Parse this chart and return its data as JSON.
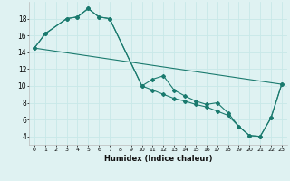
{
  "xlabel": "Humidex (Indice chaleur)",
  "bg_color": "#dff2f2",
  "grid_color": "#c8e8e8",
  "line_color": "#1a7a6e",
  "xlim": [
    -0.5,
    23.5
  ],
  "ylim": [
    3.0,
    20.0
  ],
  "xticks": [
    0,
    1,
    2,
    3,
    4,
    5,
    6,
    7,
    8,
    9,
    10,
    11,
    12,
    13,
    14,
    15,
    16,
    17,
    18,
    19,
    20,
    21,
    22,
    23
  ],
  "yticks": [
    4,
    6,
    8,
    10,
    12,
    14,
    16,
    18
  ],
  "line1_x": [
    0,
    1,
    3,
    4,
    5,
    6,
    7,
    10,
    11,
    12,
    13,
    14,
    15,
    16,
    17,
    18,
    19,
    20,
    21,
    22,
    23
  ],
  "line1_y": [
    14.5,
    16.2,
    18.0,
    18.2,
    19.2,
    18.2,
    18.0,
    10.0,
    9.5,
    9.0,
    8.5,
    8.2,
    7.8,
    7.5,
    7.0,
    6.5,
    5.2,
    4.1,
    4.0,
    6.2,
    10.2
  ],
  "line2_x": [
    0,
    1,
    3,
    4,
    5,
    6,
    7,
    10,
    11,
    12,
    13,
    14,
    15,
    16,
    17,
    18,
    19,
    20,
    21,
    22,
    23
  ],
  "line2_y": [
    14.5,
    16.2,
    18.0,
    18.2,
    19.2,
    18.2,
    18.0,
    10.0,
    10.8,
    11.2,
    9.5,
    8.8,
    8.2,
    7.8,
    8.0,
    6.8,
    5.2,
    4.1,
    4.0,
    6.2,
    10.2
  ],
  "line3_x": [
    0,
    23
  ],
  "line3_y": [
    14.5,
    10.2
  ]
}
